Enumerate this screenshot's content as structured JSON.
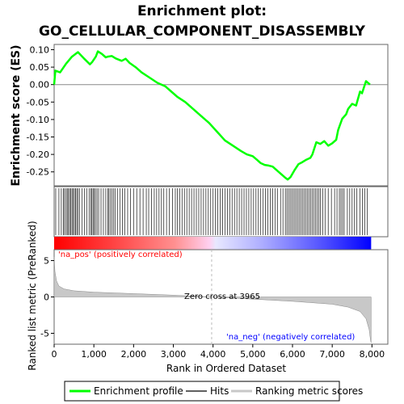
{
  "chart_data": {
    "type": "line",
    "title": "Enrichment plot:",
    "subtitle": "GO_CELLULAR_COMPONENT_DISASSEMBLY",
    "top_panel": {
      "ylabel": "Enrichment score (ES)",
      "ylim": [
        -0.29,
        0.115
      ],
      "yticks": [
        0.1,
        0.05,
        0.0,
        -0.05,
        -0.1,
        -0.15,
        -0.2,
        -0.25
      ],
      "ytick_labels": [
        "0.10",
        "0.05",
        "0.00",
        "-0.05",
        "-0.10",
        "-0.15",
        "-0.20",
        "-0.25"
      ],
      "grid": false,
      "series": [
        {
          "name": "Enrichment profile",
          "color": "#00ff00",
          "x": [
            0,
            30,
            150,
            300,
            450,
            600,
            750,
            900,
            960,
            1050,
            1100,
            1200,
            1300,
            1350,
            1450,
            1550,
            1700,
            1800,
            1900,
            2050,
            2200,
            2400,
            2600,
            2800,
            3000,
            3100,
            3300,
            3500,
            3700,
            3900,
            4100,
            4300,
            4500,
            4700,
            4850,
            5000,
            5100,
            5200,
            5300,
            5400,
            5500,
            5650,
            5800,
            5880,
            5950,
            6050,
            6150,
            6250,
            6350,
            6450,
            6500,
            6600,
            6700,
            6800,
            6900,
            7000,
            7100,
            7150,
            7250,
            7350,
            7400,
            7500,
            7600,
            7700,
            7750,
            7850,
            7950
          ],
          "y": [
            0.0,
            0.04,
            0.035,
            0.06,
            0.08,
            0.093,
            0.075,
            0.058,
            0.065,
            0.08,
            0.095,
            0.088,
            0.078,
            0.08,
            0.082,
            0.075,
            0.068,
            0.074,
            0.062,
            0.05,
            0.035,
            0.02,
            0.005,
            -0.005,
            -0.025,
            -0.035,
            -0.05,
            -0.07,
            -0.09,
            -0.11,
            -0.135,
            -0.16,
            -0.175,
            -0.19,
            -0.2,
            -0.205,
            -0.215,
            -0.225,
            -0.23,
            -0.232,
            -0.235,
            -0.25,
            -0.265,
            -0.272,
            -0.265,
            -0.245,
            -0.228,
            -0.222,
            -0.215,
            -0.21,
            -0.2,
            -0.165,
            -0.17,
            -0.162,
            -0.175,
            -0.168,
            -0.158,
            -0.13,
            -0.098,
            -0.085,
            -0.07,
            -0.055,
            -0.06,
            -0.02,
            -0.025,
            0.01,
            0.0
          ]
        }
      ]
    },
    "hits_panel": {
      "legend_label": "Hits",
      "hit_positions": [
        40,
        120,
        180,
        230,
        260,
        300,
        330,
        360,
        390,
        420,
        450,
        480,
        510,
        540,
        570,
        600,
        640,
        700,
        760,
        820,
        880,
        920,
        950,
        980,
        1010,
        1040,
        1080,
        1120,
        1180,
        1240,
        1300,
        1350,
        1380,
        1420,
        1460,
        1500,
        1540,
        1600,
        1660,
        1720,
        1780,
        1850,
        1920,
        2000,
        2080,
        2160,
        2240,
        2320,
        2380,
        2450,
        2520,
        2580,
        2640,
        2700,
        2760,
        2830,
        2900,
        2980,
        3050,
        3100,
        3160,
        3220,
        3280,
        3340,
        3400,
        3460,
        3520,
        3580,
        3640,
        3700,
        3760,
        3820,
        3880,
        3940,
        4000,
        4060,
        4120,
        4180,
        4240,
        4300,
        4360,
        4420,
        4480,
        4540,
        4600,
        4660,
        4720,
        4780,
        4840,
        4900,
        4960,
        5020,
        5080,
        5140,
        5200,
        5260,
        5320,
        5380,
        5440,
        5500,
        5560,
        5620,
        5700,
        5760,
        5820,
        5860,
        5900,
        5940,
        5980,
        6020,
        6060,
        6100,
        6140,
        6180,
        6220,
        6260,
        6300,
        6340,
        6380,
        6420,
        6460,
        6500,
        6540,
        6580,
        6620,
        6660,
        6700,
        6760,
        6820,
        6900,
        6980,
        7060,
        7120,
        7180,
        7220,
        7260,
        7300,
        7380,
        7440,
        7500,
        7560,
        7620,
        7700,
        7760,
        7820,
        7880
      ],
      "label_pos": "'na_pos' (positively correlated)",
      "label_neg": "'na_neg' (negatively correlated)",
      "color_pos": "#ff0000",
      "color_neg": "#0000ff"
    },
    "metric_panel": {
      "ylabel": "Ranked list metric (PreRanked)",
      "xlabel": "Rank in Ordered Dataset",
      "ylim": [
        -6.5,
        6.5
      ],
      "yticks": [
        5,
        0,
        -5
      ],
      "ytick_labels": [
        "5",
        "0",
        "-5"
      ],
      "xlim": [
        0,
        8400
      ],
      "xticks": [
        0,
        1000,
        2000,
        3000,
        4000,
        5000,
        6000,
        7000,
        8000
      ],
      "xtick_labels": [
        "0",
        "1,000",
        "2,000",
        "3,000",
        "4,000",
        "5,000",
        "6,000",
        "7,000",
        "8,000"
      ],
      "zero_cross_label": "Zero cross at 3965",
      "zero_cross": 3965,
      "n_genes": 7980,
      "metric_curve": {
        "x": [
          0,
          20,
          60,
          120,
          250,
          500,
          1000,
          2000,
          3000,
          3965,
          5000,
          6000,
          7000,
          7400,
          7700,
          7850,
          7930,
          7965,
          7980
        ],
        "y": [
          5.5,
          3.5,
          2.2,
          1.5,
          1.1,
          0.85,
          0.65,
          0.45,
          0.25,
          0.0,
          -0.3,
          -0.6,
          -1.0,
          -1.4,
          -2.0,
          -3.0,
          -4.5,
          -6.0,
          -6.3
        ]
      }
    },
    "legend": {
      "items": [
        {
          "label": "Enrichment profile",
          "color": "#00ff00"
        },
        {
          "label": "Hits",
          "color": "#606060"
        },
        {
          "label": "Ranking metric scores",
          "color": "#c8c8c8"
        }
      ]
    }
  }
}
